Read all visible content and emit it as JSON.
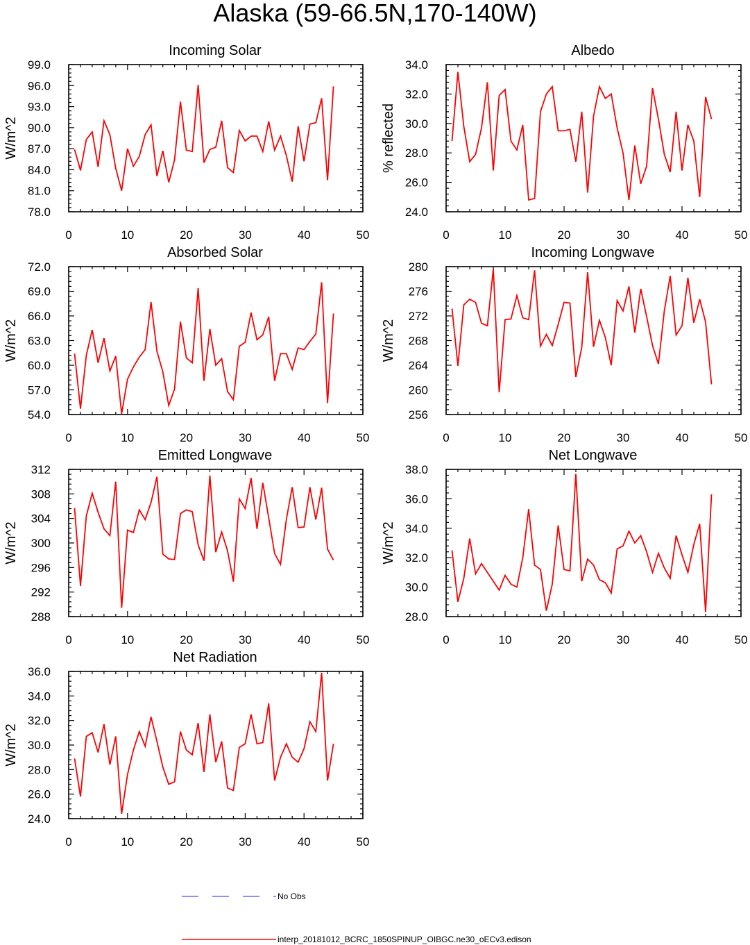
{
  "title": "Alaska (59-66.5N,170-140W)",
  "colors": {
    "model": "#ff0000",
    "obs": "#6c6cf0",
    "axis": "#000000"
  },
  "legend": {
    "obs_label": "No Obs",
    "model_label": "interp_20181012_BCRC_1850SPINUP_OIBGC.ne30_oECv3.edison"
  },
  "chart_data": [
    {
      "type": "line",
      "title": "Incoming Solar",
      "ylabel": "W/m^2",
      "xlim": [
        0,
        50
      ],
      "ylim": [
        78,
        99
      ],
      "xticks": [
        "0",
        "10",
        "20",
        "30",
        "40",
        "50"
      ],
      "yticks": [
        "78.0",
        "81.0",
        "84.0",
        "87.0",
        "90.0",
        "93.0",
        "96.0",
        "99.0"
      ],
      "x": [
        1,
        2,
        3,
        4,
        5,
        6,
        7,
        8,
        9,
        10,
        11,
        12,
        13,
        14,
        15,
        16,
        17,
        18,
        19,
        20,
        21,
        22,
        23,
        24,
        25,
        26,
        27,
        28,
        29,
        30,
        31,
        32,
        33,
        34,
        35,
        36,
        37,
        38,
        39,
        40,
        41,
        42,
        43,
        44,
        45
      ],
      "series": [
        {
          "values": [
            86.9,
            83.9,
            88.3,
            89.4,
            84.4,
            91.0,
            89.0,
            84.2,
            81.0,
            87.0,
            84.5,
            85.9,
            89.0,
            90.4,
            83.1,
            86.7,
            82.2,
            85.4,
            93.7,
            86.8,
            86.6,
            96.1,
            85.0,
            86.9,
            87.2,
            91.0,
            84.3,
            83.6,
            89.6,
            88.1,
            88.8,
            88.8,
            86.6,
            90.9,
            86.8,
            88.8,
            86.0,
            82.3,
            90.2,
            85.2,
            90.5,
            90.7,
            94.2,
            82.5,
            95.9
          ]
        }
      ]
    },
    {
      "type": "line",
      "title": "Albedo",
      "ylabel": "% reflected",
      "xlim": [
        0,
        50
      ],
      "ylim": [
        24,
        34
      ],
      "xticks": [
        "0",
        "10",
        "20",
        "30",
        "40",
        "50"
      ],
      "yticks": [
        "24.0",
        "26.0",
        "28.0",
        "30.0",
        "32.0",
        "34.0"
      ],
      "x": [
        1,
        2,
        3,
        4,
        5,
        6,
        7,
        8,
        9,
        10,
        11,
        12,
        13,
        14,
        15,
        16,
        17,
        18,
        19,
        20,
        21,
        22,
        23,
        24,
        25,
        26,
        27,
        28,
        29,
        30,
        31,
        32,
        33,
        34,
        35,
        36,
        37,
        38,
        39,
        40,
        41,
        42,
        43,
        44,
        45
      ],
      "series": [
        {
          "values": [
            28.8,
            33.5,
            29.8,
            27.4,
            27.9,
            29.7,
            32.8,
            26.8,
            31.9,
            32.3,
            28.8,
            28.2,
            29.9,
            24.8,
            24.9,
            30.8,
            32.0,
            32.5,
            29.5,
            29.5,
            29.6,
            27.4,
            30.8,
            25.3,
            30.5,
            32.5,
            31.7,
            32.0,
            29.7,
            28.0,
            24.8,
            28.5,
            25.9,
            27.1,
            32.4,
            30.3,
            27.9,
            26.7,
            30.8,
            26.8,
            29.9,
            28.8,
            25.0,
            31.8,
            30.3
          ]
        }
      ]
    },
    {
      "type": "line",
      "title": "Absorbed Solar",
      "ylabel": "W/m^2",
      "xlim": [
        0,
        50
      ],
      "ylim": [
        54,
        72
      ],
      "xticks": [
        "0",
        "10",
        "20",
        "30",
        "40",
        "50"
      ],
      "yticks": [
        "54.0",
        "57.0",
        "60.0",
        "63.0",
        "66.0",
        "69.0",
        "72.0"
      ],
      "x": [
        1,
        2,
        3,
        4,
        5,
        6,
        7,
        8,
        9,
        10,
        11,
        12,
        13,
        14,
        15,
        16,
        17,
        18,
        19,
        20,
        21,
        22,
        23,
        24,
        25,
        26,
        27,
        28,
        29,
        30,
        31,
        32,
        33,
        34,
        35,
        36,
        37,
        38,
        39,
        40,
        41,
        42,
        43,
        44,
        45
      ],
      "series": [
        {
          "values": [
            61.4,
            54.7,
            61.2,
            64.3,
            60.3,
            63.3,
            59.3,
            61.1,
            54.1,
            58.3,
            59.8,
            61.0,
            61.9,
            67.7,
            61.7,
            59.2,
            55.1,
            57.1,
            65.3,
            60.9,
            60.3,
            69.4,
            58.1,
            64.4,
            60.0,
            60.8,
            56.8,
            55.8,
            62.3,
            62.8,
            66.4,
            63.1,
            63.7,
            65.9,
            58.1,
            61.4,
            61.4,
            59.5,
            62.1,
            61.9,
            62.9,
            63.8,
            70.1,
            55.4,
            66.3
          ]
        }
      ]
    },
    {
      "type": "line",
      "title": "Incoming Longwave",
      "ylabel": "W/m^2",
      "xlim": [
        0,
        50
      ],
      "ylim": [
        256,
        280
      ],
      "xticks": [
        "0",
        "10",
        "20",
        "30",
        "40",
        "50"
      ],
      "yticks": [
        "256",
        "260",
        "264",
        "268",
        "272",
        "276",
        "280"
      ],
      "x": [
        1,
        2,
        3,
        4,
        5,
        6,
        7,
        8,
        9,
        10,
        11,
        12,
        13,
        14,
        15,
        16,
        17,
        18,
        19,
        20,
        21,
        22,
        23,
        24,
        25,
        26,
        27,
        28,
        29,
        30,
        31,
        32,
        33,
        34,
        35,
        36,
        37,
        38,
        39,
        40,
        41,
        42,
        43,
        44,
        45
      ],
      "series": [
        {
          "values": [
            273.2,
            263.9,
            273.8,
            274.7,
            274.2,
            270.8,
            270.4,
            279.6,
            259.6,
            271.4,
            271.5,
            275.3,
            271.7,
            271.4,
            279.4,
            267.1,
            269.0,
            267.2,
            270.6,
            274.2,
            274.1,
            262.1,
            266.9,
            279.1,
            267.0,
            271.3,
            268.5,
            264.0,
            274.5,
            272.8,
            276.8,
            269.3,
            276.4,
            271.9,
            267.2,
            264.2,
            272.8,
            278.5,
            268.9,
            270.4,
            278.2,
            270.9,
            274.7,
            271.0,
            260.9
          ]
        }
      ]
    },
    {
      "type": "line",
      "title": "Emitted Longwave",
      "ylabel": "W/m^2",
      "xlim": [
        0,
        50
      ],
      "ylim": [
        288,
        312
      ],
      "xticks": [
        "0",
        "10",
        "20",
        "30",
        "40",
        "50"
      ],
      "yticks": [
        "288",
        "292",
        "296",
        "300",
        "304",
        "308",
        "312"
      ],
      "x": [
        1,
        2,
        3,
        4,
        5,
        6,
        7,
        8,
        9,
        10,
        11,
        12,
        13,
        14,
        15,
        16,
        17,
        18,
        19,
        20,
        21,
        22,
        23,
        24,
        25,
        26,
        27,
        28,
        29,
        30,
        31,
        32,
        33,
        34,
        35,
        36,
        37,
        38,
        39,
        40,
        41,
        42,
        43,
        44,
        45
      ],
      "series": [
        {
          "values": [
            305.7,
            293.0,
            304.4,
            308.1,
            305.0,
            302.3,
            301.2,
            310.0,
            289.4,
            302.1,
            301.7,
            305.4,
            303.8,
            306.6,
            310.8,
            298.2,
            297.4,
            297.3,
            304.8,
            305.4,
            305.1,
            299.7,
            297.1,
            311.0,
            298.5,
            301.8,
            298.7,
            293.7,
            307.2,
            305.6,
            310.6,
            302.3,
            309.8,
            304.1,
            298.3,
            296.5,
            303.9,
            309.1,
            302.5,
            302.6,
            309.1,
            303.8,
            309.0,
            299.0,
            297.2
          ]
        }
      ]
    },
    {
      "type": "line",
      "title": "Net Longwave",
      "ylabel": "W/m^2",
      "xlim": [
        0,
        50
      ],
      "ylim": [
        28,
        38
      ],
      "xticks": [
        "0",
        "10",
        "20",
        "30",
        "40",
        "50"
      ],
      "yticks": [
        "28.0",
        "30.0",
        "32.0",
        "34.0",
        "36.0",
        "38.0"
      ],
      "x": [
        1,
        2,
        3,
        4,
        5,
        6,
        7,
        8,
        9,
        10,
        11,
        12,
        13,
        14,
        15,
        16,
        17,
        18,
        19,
        20,
        21,
        22,
        23,
        24,
        25,
        26,
        27,
        28,
        29,
        30,
        31,
        32,
        33,
        34,
        35,
        36,
        37,
        38,
        39,
        40,
        41,
        42,
        43,
        44,
        45
      ],
      "series": [
        {
          "values": [
            32.5,
            29.0,
            30.6,
            33.3,
            30.9,
            31.6,
            31.0,
            30.4,
            29.8,
            30.8,
            30.2,
            30.0,
            32.0,
            35.3,
            31.5,
            31.2,
            28.4,
            30.2,
            34.2,
            31.2,
            31.1,
            37.7,
            30.4,
            31.9,
            31.5,
            30.5,
            30.3,
            29.6,
            32.6,
            32.8,
            33.8,
            33.0,
            33.5,
            32.4,
            31.0,
            32.3,
            31.3,
            30.6,
            33.5,
            32.2,
            31.0,
            32.9,
            34.3,
            28.3,
            36.3
          ]
        }
      ]
    },
    {
      "type": "line",
      "title": "Net Radiation",
      "ylabel": "W/m^2",
      "xlim": [
        0,
        50
      ],
      "ylim": [
        24,
        36
      ],
      "xticks": [
        "0",
        "10",
        "20",
        "30",
        "40",
        "50"
      ],
      "yticks": [
        "24.0",
        "26.0",
        "28.0",
        "30.0",
        "32.0",
        "34.0",
        "36.0"
      ],
      "x": [
        1,
        2,
        3,
        4,
        5,
        6,
        7,
        8,
        9,
        10,
        11,
        12,
        13,
        14,
        15,
        16,
        17,
        18,
        19,
        20,
        21,
        22,
        23,
        24,
        25,
        26,
        27,
        28,
        29,
        30,
        31,
        32,
        33,
        34,
        35,
        36,
        37,
        38,
        39,
        40,
        41,
        42,
        43,
        44,
        45
      ],
      "series": [
        {
          "values": [
            28.9,
            25.8,
            30.7,
            31.0,
            29.4,
            31.7,
            28.4,
            30.7,
            24.4,
            27.6,
            29.6,
            31.1,
            29.9,
            32.3,
            30.3,
            28.2,
            26.8,
            27.0,
            31.1,
            29.6,
            29.2,
            31.8,
            27.8,
            32.5,
            28.6,
            30.3,
            26.5,
            26.3,
            29.8,
            30.1,
            32.5,
            30.1,
            30.2,
            33.4,
            27.1,
            29.0,
            30.1,
            29.0,
            28.6,
            29.7,
            31.9,
            31.1,
            35.9,
            27.1,
            30.1
          ]
        }
      ]
    }
  ]
}
